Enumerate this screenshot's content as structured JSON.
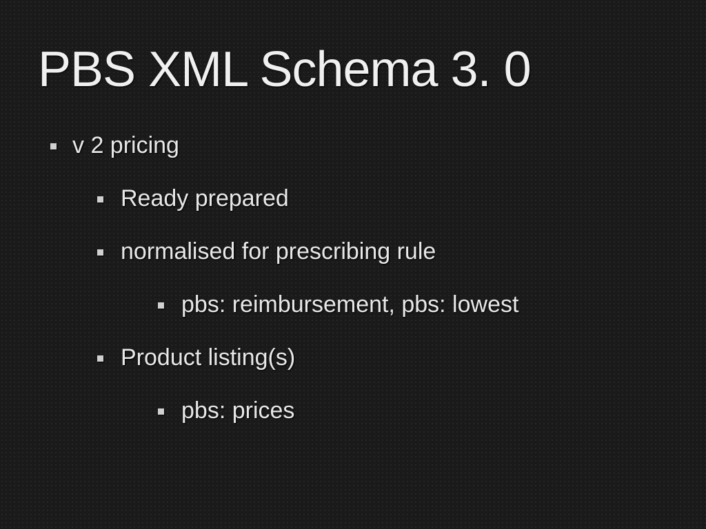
{
  "slide": {
    "title": "PBS XML Schema 3. 0",
    "background_color": "#1a1a1a",
    "dot_color": "#2a2a2a",
    "text_color": "#e8e8e8",
    "title_fontsize": 72,
    "body_fontsize": 34,
    "bullet_color": "#d0d0d0",
    "bullets": {
      "level1": [
        {
          "text": "v 2 pricing",
          "level2": [
            {
              "text": "Ready prepared"
            },
            {
              "text": "normalised for prescribing rule",
              "level3": [
                {
                  "text": "pbs: reimbursement, pbs: lowest"
                }
              ]
            },
            {
              "text": "Product listing(s)",
              "level3": [
                {
                  "text": "pbs: prices"
                }
              ]
            }
          ]
        }
      ]
    }
  }
}
